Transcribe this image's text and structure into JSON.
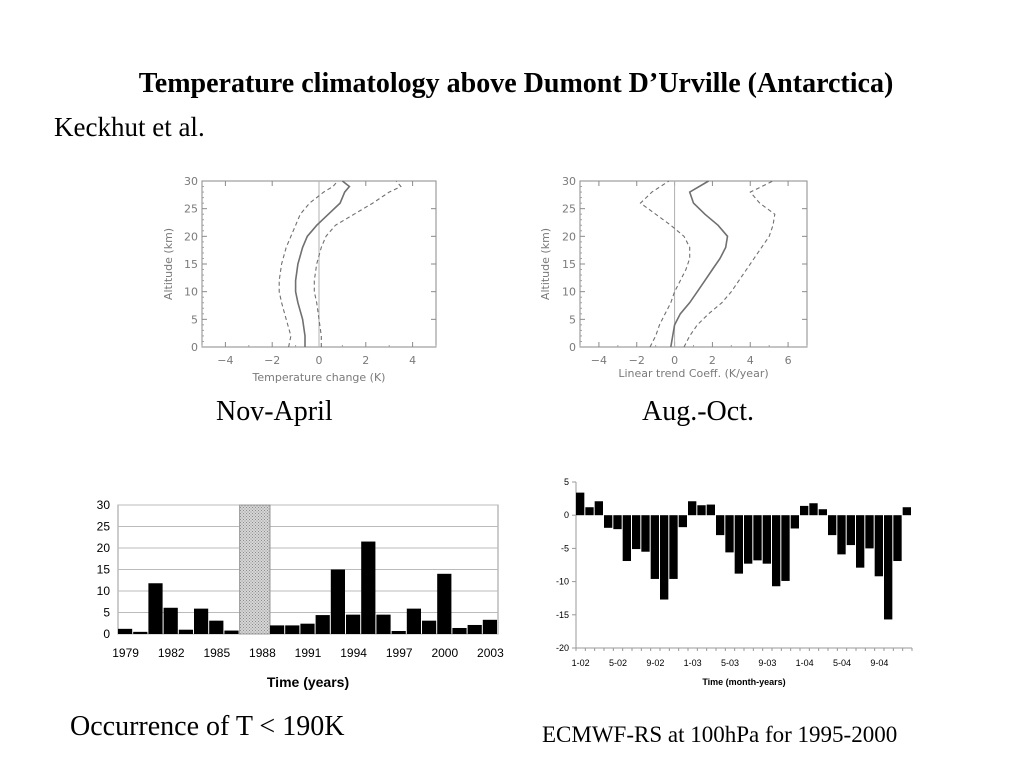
{
  "slide": {
    "title": "Temperature climatology above Dumont D’Urville (Antarctica)",
    "authors": "Keckhut et al.",
    "captions": {
      "profile1": "Nov-April",
      "profile2": "Aug.-Oct.",
      "bars1": "Occurrence of T < 190K",
      "bars2": "ECMWF-RS at 100hPa for 1995-2000"
    }
  },
  "chart_data": [
    {
      "type": "line",
      "xlabel": "Temperature change (K)",
      "ylabel": "Altitude (km)",
      "xlim": [
        -5,
        5
      ],
      "ylim": [
        0,
        30
      ],
      "xticks": [
        -4,
        -2,
        0,
        2,
        4
      ],
      "yticks": [
        0,
        5,
        10,
        15,
        20,
        25,
        30
      ],
      "series": [
        {
          "style": "solid",
          "altitude": [
            0,
            2,
            5,
            8,
            10,
            12,
            15,
            18,
            20,
            22,
            24,
            26,
            28,
            29,
            30
          ],
          "value": [
            -0.6,
            -0.6,
            -0.7,
            -0.9,
            -1.0,
            -1.0,
            -0.9,
            -0.7,
            -0.5,
            -0.1,
            0.4,
            0.9,
            1.1,
            1.3,
            1.0
          ]
        },
        {
          "style": "dashed",
          "altitude": [
            0,
            2,
            5,
            8,
            10,
            12,
            15,
            18,
            20,
            22,
            24,
            26,
            28,
            29,
            30
          ],
          "value": [
            -1.3,
            -1.2,
            -1.4,
            -1.6,
            -1.7,
            -1.7,
            -1.6,
            -1.4,
            -1.2,
            -1.0,
            -0.8,
            -0.4,
            0.2,
            0.6,
            0.8
          ]
        },
        {
          "style": "dashed",
          "altitude": [
            0,
            2,
            5,
            8,
            10,
            12,
            15,
            18,
            20,
            22,
            24,
            26,
            28,
            29,
            30
          ],
          "value": [
            0.1,
            0.1,
            0.0,
            -0.1,
            -0.2,
            -0.2,
            -0.1,
            0.1,
            0.3,
            0.7,
            1.5,
            2.3,
            3.0,
            3.5,
            3.3
          ]
        }
      ],
      "zero_line": true
    },
    {
      "type": "line",
      "xlabel": "Linear trend Coeff. (K/year)",
      "ylabel": "Altitude (km)",
      "xlim": [
        -5,
        7
      ],
      "ylim": [
        0,
        30
      ],
      "xticks": [
        -4,
        -2,
        0,
        2,
        4,
        6
      ],
      "yticks": [
        0,
        5,
        10,
        15,
        20,
        25,
        30
      ],
      "series": [
        {
          "style": "solid",
          "altitude": [
            0,
            2,
            4,
            6,
            8,
            10,
            12,
            14,
            16,
            18,
            20,
            22,
            24,
            26,
            28,
            30
          ],
          "value": [
            -0.2,
            -0.1,
            0.0,
            0.3,
            0.8,
            1.2,
            1.6,
            2.0,
            2.4,
            2.7,
            2.8,
            2.3,
            1.6,
            1.0,
            0.8,
            1.8
          ]
        },
        {
          "style": "dashed",
          "altitude": [
            0,
            2,
            4,
            6,
            8,
            10,
            12,
            14,
            16,
            18,
            20,
            22,
            24,
            26,
            28,
            30
          ],
          "value": [
            -1.3,
            -1.0,
            -0.8,
            -0.5,
            -0.2,
            0.0,
            0.3,
            0.6,
            0.8,
            0.8,
            0.5,
            -0.2,
            -1.0,
            -1.8,
            -1.2,
            -0.3
          ]
        },
        {
          "style": "dashed",
          "altitude": [
            0,
            2,
            4,
            6,
            8,
            10,
            12,
            14,
            16,
            18,
            20,
            22,
            24,
            26,
            28,
            30
          ],
          "value": [
            0.5,
            0.8,
            1.2,
            1.8,
            2.5,
            3.0,
            3.4,
            3.8,
            4.2,
            4.6,
            5.0,
            5.2,
            5.3,
            4.5,
            4.0,
            5.2
          ]
        }
      ],
      "zero_line": true
    },
    {
      "type": "bar",
      "xlabel": "Time (years)",
      "ylim": [
        0,
        30
      ],
      "yticks": [
        0,
        5,
        10,
        15,
        20,
        25,
        30
      ],
      "xticks": [
        "1979",
        "1982",
        "1985",
        "1988",
        "1991",
        "1994",
        "1997",
        "2000",
        "2003"
      ],
      "categories": [
        "1979",
        "1980",
        "1981",
        "1982",
        "1983",
        "1984",
        "1985",
        "1986",
        "1987",
        "1988",
        "1989",
        "1990",
        "1991",
        "1992",
        "1993",
        "1994",
        "1995",
        "1996",
        "1997",
        "1998",
        "1999",
        "2000",
        "2001",
        "2002",
        "2003"
      ],
      "values": [
        1.2,
        0.5,
        11.8,
        6.1,
        1.0,
        5.9,
        3.1,
        0.8,
        null,
        null,
        2.0,
        2.0,
        2.4,
        4.4,
        15.0,
        4.5,
        21.5,
        4.5,
        0.7,
        5.9,
        3.1,
        14.0,
        1.4,
        2.1,
        3.3
      ],
      "missing_span": [
        "1987",
        "1988"
      ]
    },
    {
      "type": "bar",
      "xlabel": "Time (month-years)",
      "ylim": [
        -20,
        5
      ],
      "yticks": [
        -20,
        -15,
        -10,
        -5,
        0,
        5
      ],
      "xticks": [
        "1-02",
        "5-02",
        "9-02",
        "1-03",
        "5-03",
        "9-03",
        "1-04",
        "5-04",
        "9-04"
      ],
      "values": [
        3.4,
        1.2,
        2.1,
        -1.9,
        -2.1,
        -6.9,
        -5.1,
        -5.5,
        -9.6,
        -12.7,
        -9.6,
        -1.8,
        2.1,
        1.5,
        1.6,
        -3.0,
        -5.6,
        -8.8,
        -7.3,
        -6.8,
        -7.3,
        -10.7,
        -9.9,
        -2.0,
        1.4,
        1.8,
        0.9,
        -3.0,
        -5.9,
        -4.5,
        -7.9,
        -5.0,
        -9.2,
        -15.7,
        -6.9,
        1.2
      ]
    }
  ]
}
